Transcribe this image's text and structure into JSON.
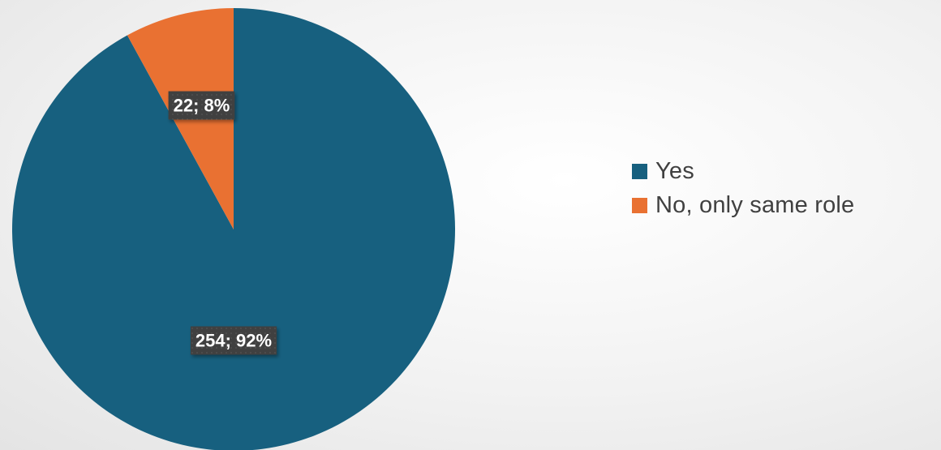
{
  "chart_data": {
    "type": "pie",
    "title": "",
    "slices": [
      {
        "label": "Yes",
        "value": 254,
        "percent": "92%",
        "data_label": "254; 92%",
        "color": "#17607f"
      },
      {
        "label": "No, only same role",
        "value": 22,
        "percent": "8%",
        "data_label": "22; 8%",
        "color": "#e97132"
      }
    ],
    "start_angle_deg": 0,
    "direction": "clockwise",
    "legend_position": "right",
    "data_label_background": "#404040"
  }
}
